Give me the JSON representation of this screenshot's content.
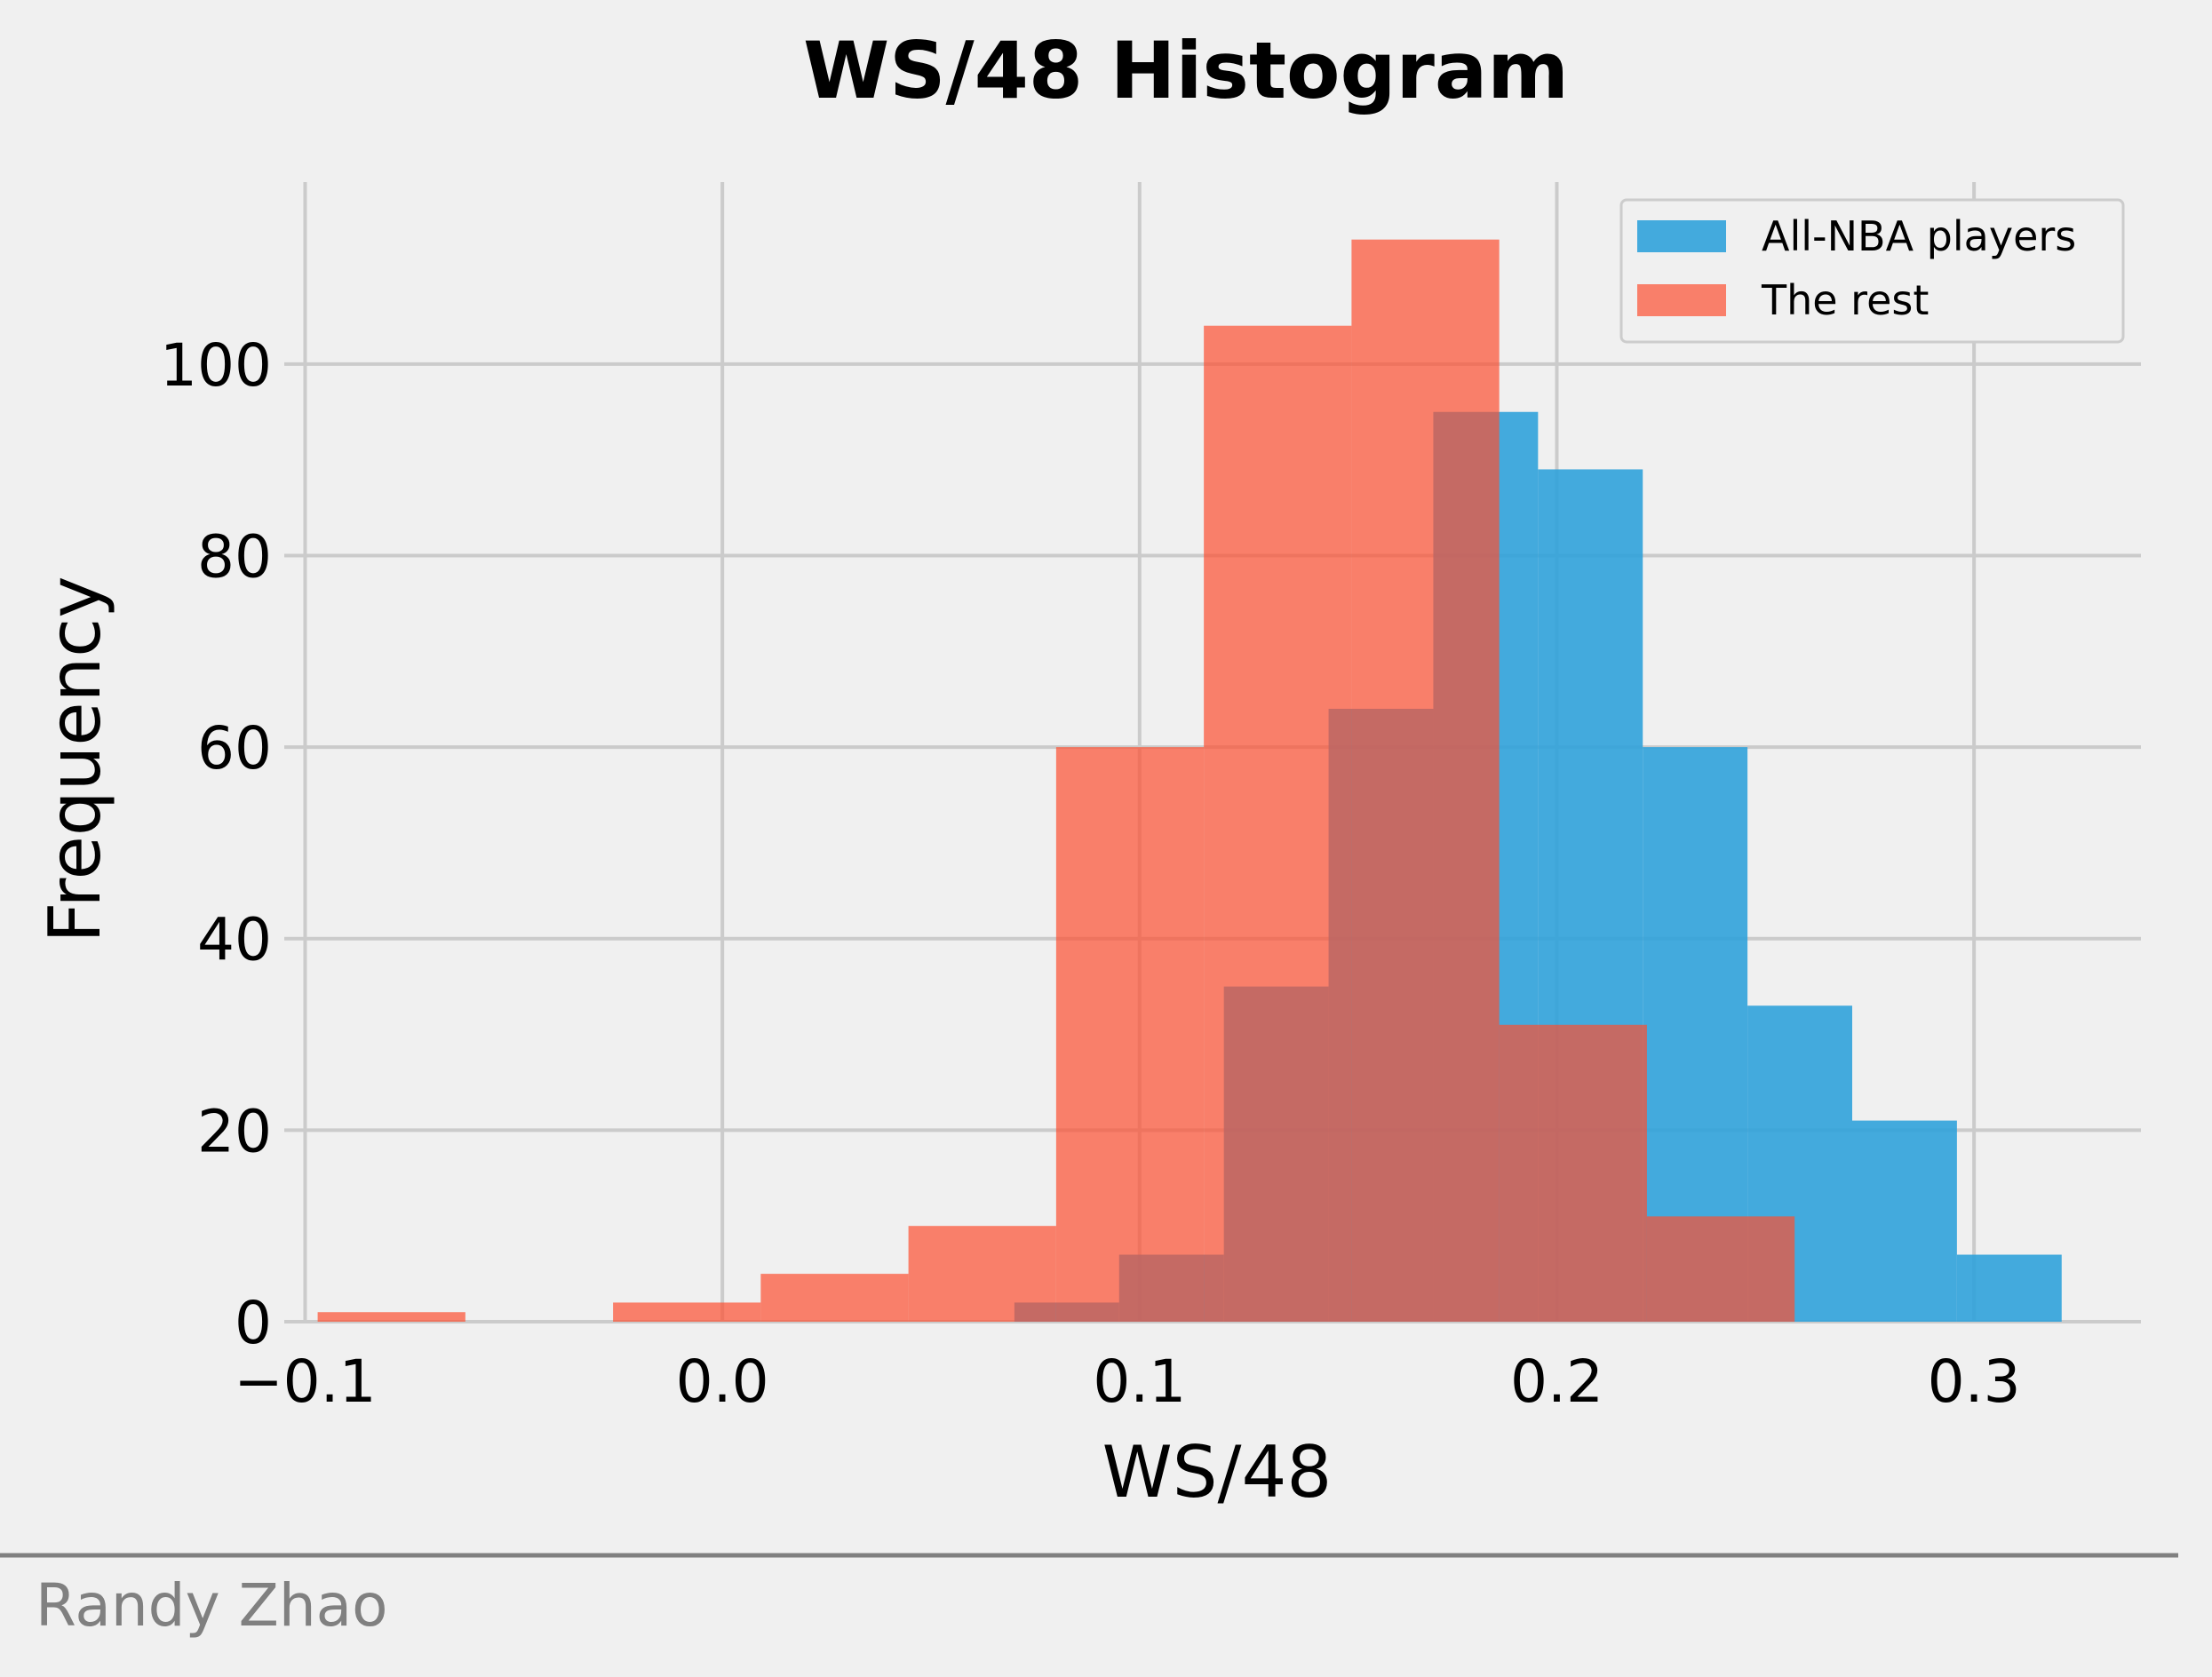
{
  "chart_data": {
    "type": "bar",
    "title": "WS/48 Histogram",
    "xlabel": "WS/48",
    "ylabel": "Frequency",
    "xlim": [
      -0.105,
      0.34
    ],
    "ylim": [
      0,
      119
    ],
    "grid": true,
    "legend_position": "top-right",
    "x_ticks": [
      {
        "value": -0.1,
        "label": "−0.1"
      },
      {
        "value": 0.0,
        "label": "0.0"
      },
      {
        "value": 0.1,
        "label": "0.1"
      },
      {
        "value": 0.2,
        "label": "0.2"
      },
      {
        "value": 0.3,
        "label": "0.3"
      }
    ],
    "y_ticks": [
      {
        "value": 0,
        "label": "0"
      },
      {
        "value": 20,
        "label": "20"
      },
      {
        "value": 40,
        "label": "40"
      },
      {
        "value": 60,
        "label": "60"
      },
      {
        "value": 80,
        "label": "80"
      },
      {
        "value": 100,
        "label": "100"
      }
    ],
    "series": [
      {
        "name": "All-NBA players",
        "color": "#30a2da",
        "opacity": 0.9,
        "bins": [
          {
            "x0": 0.07,
            "x1": 0.0951,
            "count": 2
          },
          {
            "x0": 0.0951,
            "x1": 0.1202,
            "count": 7
          },
          {
            "x0": 0.1202,
            "x1": 0.1453,
            "count": 35
          },
          {
            "x0": 0.1453,
            "x1": 0.1704,
            "count": 64
          },
          {
            "x0": 0.1704,
            "x1": 0.1955,
            "count": 95
          },
          {
            "x0": 0.1955,
            "x1": 0.2206,
            "count": 89
          },
          {
            "x0": 0.2206,
            "x1": 0.2457,
            "count": 60
          },
          {
            "x0": 0.2457,
            "x1": 0.2708,
            "count": 33
          },
          {
            "x0": 0.2708,
            "x1": 0.2959,
            "count": 21
          },
          {
            "x0": 0.2959,
            "x1": 0.321,
            "count": 7
          }
        ]
      },
      {
        "name": "The rest",
        "color": "#fc4f30",
        "opacity": 0.7,
        "bins": [
          {
            "x0": -0.097,
            "x1": -0.0616,
            "count": 1
          },
          {
            "x0": -0.0616,
            "x1": -0.0262,
            "count": 0
          },
          {
            "x0": -0.0262,
            "x1": 0.0092,
            "count": 2
          },
          {
            "x0": 0.0092,
            "x1": 0.0446,
            "count": 5
          },
          {
            "x0": 0.0446,
            "x1": 0.08,
            "count": 10
          },
          {
            "x0": 0.08,
            "x1": 0.1154,
            "count": 60
          },
          {
            "x0": 0.1154,
            "x1": 0.1508,
            "count": 104
          },
          {
            "x0": 0.1508,
            "x1": 0.1862,
            "count": 113
          },
          {
            "x0": 0.1862,
            "x1": 0.2216,
            "count": 31
          },
          {
            "x0": 0.2216,
            "x1": 0.257,
            "count": 11
          }
        ]
      }
    ]
  },
  "footer": {
    "author": "Randy Zhao",
    "rule_color": "#808080"
  }
}
